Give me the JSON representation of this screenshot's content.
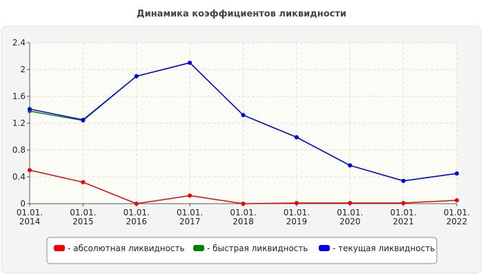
{
  "chart_data": {
    "type": "line",
    "title": "Динамика коэффициентов ликвидности",
    "categories": [
      "01.01.\n2014",
      "01.01.\n2015",
      "01.01.\n2016",
      "01.01.\n2017",
      "01.01.\n2018",
      "01.01.\n2019",
      "01.01.\n2020",
      "01.01.\n2021",
      "01.01.\n2022"
    ],
    "series": [
      {
        "name": "- абсолютная ликвидность",
        "color": "#ee0000",
        "values": [
          0.5,
          0.32,
          0.0,
          0.12,
          0.0,
          0.01,
          0.01,
          0.01,
          0.05
        ]
      },
      {
        "name": "- быстрая ликвидность",
        "color": "#008000",
        "values": [
          1.38,
          1.24,
          1.9,
          2.1,
          1.32,
          0.99,
          0.57,
          0.34,
          0.45
        ]
      },
      {
        "name": "- текущая ликвидность",
        "color": "#0000ee",
        "values": [
          1.41,
          1.25,
          1.9,
          2.1,
          1.32,
          0.99,
          0.57,
          0.34,
          0.45
        ]
      }
    ],
    "ylim": [
      0,
      2.4
    ],
    "yticks": [
      0,
      0.4,
      0.8,
      1.2,
      1.6,
      2,
      2.4
    ],
    "grid": true
  }
}
